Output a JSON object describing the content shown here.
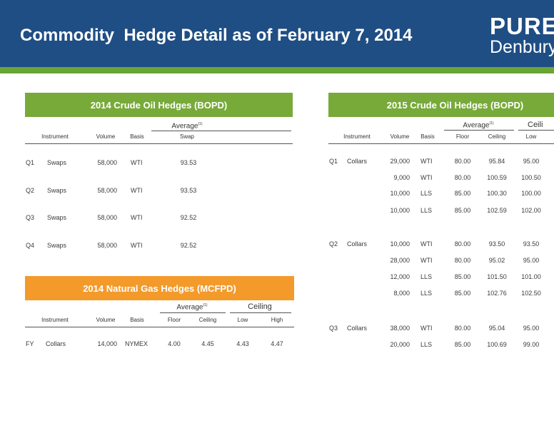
{
  "header": {
    "title": "Commodity  Hedge Detail as of February 7, 2014",
    "logo_line1": "PURE",
    "logo_line2": "Denbury"
  },
  "crude_2014": {
    "title": "2014 Crude Oil Hedges (BOPD)",
    "group_label": "Average",
    "group_sup": "(1)",
    "headers": [
      "Instrument",
      "Volume",
      "Basis",
      "Swap"
    ],
    "rows": [
      {
        "period": "Q1",
        "instrument": "Swaps",
        "volume": "58,000",
        "basis": "WTI",
        "swap": "93.53"
      },
      {
        "period": "Q2",
        "instrument": "Swaps",
        "volume": "58,000",
        "basis": "WTI",
        "swap": "93.53"
      },
      {
        "period": "Q3",
        "instrument": "Swaps",
        "volume": "58,000",
        "basis": "WTI",
        "swap": "92.52"
      },
      {
        "period": "Q4",
        "instrument": "Swaps",
        "volume": "58,000",
        "basis": "WTI",
        "swap": "92.52"
      }
    ]
  },
  "gas_2014": {
    "title": "2014 Natural Gas Hedges (MCFPD)",
    "group_average": "Average",
    "group_sup": "(1)",
    "group_ceiling": "Ceiling",
    "headers": [
      "Instrument",
      "Volume",
      "Basis",
      "Floor",
      "Ceiling",
      "Low",
      "High"
    ],
    "rows": [
      {
        "period": "FY",
        "instrument": "Collars",
        "volume": "14,000",
        "basis": "NYMEX",
        "floor": "4.00",
        "ceiling": "4.45",
        "low": "4.43",
        "high": "4.47"
      }
    ]
  },
  "crude_2015": {
    "title": "2015 Crude Oil Hedges (BOPD)",
    "group_average": "Average",
    "group_sup": "(1)",
    "group_ceiling": "Ceili",
    "headers": [
      "Instrument",
      "Volume",
      "Basis",
      "Floor",
      "Ceiling",
      "Low"
    ],
    "rows": [
      {
        "period": "Q1",
        "instrument": "Collars",
        "volume": "29,000",
        "basis": "WTI",
        "floor": "80.00",
        "ceiling": "95.84",
        "low": "95.00"
      },
      {
        "period": "",
        "instrument": "",
        "volume": "9,000",
        "basis": "WTI",
        "floor": "80.00",
        "ceiling": "100.59",
        "low": "100.50"
      },
      {
        "period": "",
        "instrument": "",
        "volume": "10,000",
        "basis": "LLS",
        "floor": "85.00",
        "ceiling": "100.30",
        "low": "100.00"
      },
      {
        "period": "",
        "instrument": "",
        "volume": "10,000",
        "basis": "LLS",
        "floor": "85.00",
        "ceiling": "102.59",
        "low": "102.00"
      },
      {
        "period": "Q2",
        "instrument": "Collars",
        "volume": "10,000",
        "basis": "WTI",
        "floor": "80.00",
        "ceiling": "93.50",
        "low": "93.50"
      },
      {
        "period": "",
        "instrument": "",
        "volume": "28,000",
        "basis": "WTI",
        "floor": "80.00",
        "ceiling": "95.02",
        "low": "95.00"
      },
      {
        "period": "",
        "instrument": "",
        "volume": "12,000",
        "basis": "LLS",
        "floor": "85.00",
        "ceiling": "101.50",
        "low": "101.00"
      },
      {
        "period": "",
        "instrument": "",
        "volume": "8,000",
        "basis": "LLS",
        "floor": "85.00",
        "ceiling": "102.76",
        "low": "102.50"
      },
      {
        "period": "Q3",
        "instrument": "Collars",
        "volume": "38,000",
        "basis": "WTI",
        "floor": "80.00",
        "ceiling": "95.04",
        "low": "95.00"
      },
      {
        "period": "",
        "instrument": "",
        "volume": "20,000",
        "basis": "LLS",
        "floor": "85.00",
        "ceiling": "100.69",
        "low": "99.00"
      }
    ]
  }
}
